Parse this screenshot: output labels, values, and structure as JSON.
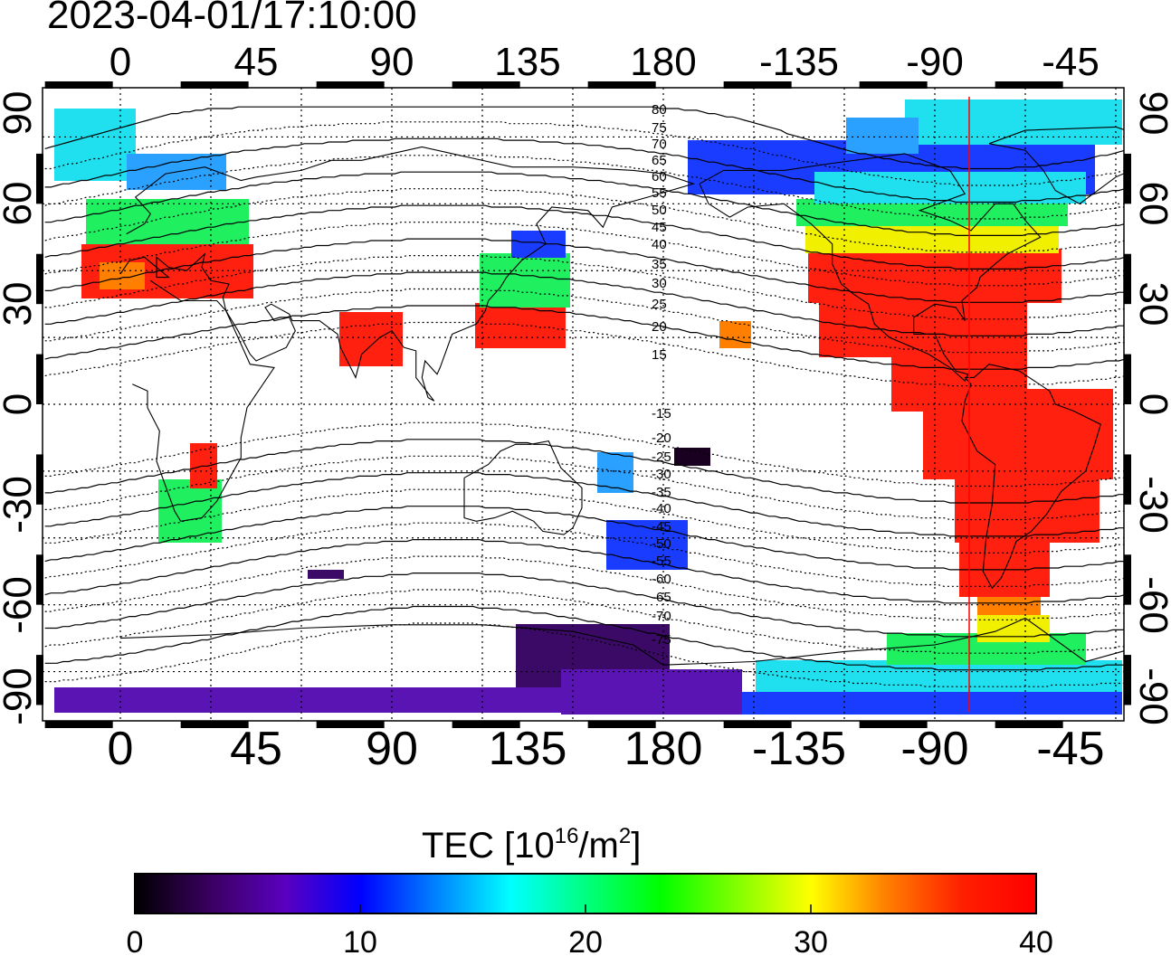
{
  "timestamp": "2023-04-01/17:10:00",
  "map": {
    "lon_labels_top": [
      "0",
      "45",
      "90",
      "135",
      "180",
      "-135",
      "-90",
      "-45"
    ],
    "lon_labels_bottom": [
      "0",
      "45",
      "90",
      "135",
      "180",
      "-135",
      "-90",
      "-45"
    ],
    "lat_labels": [
      "90",
      "60",
      "30",
      "0",
      "-30",
      "-60",
      "-90"
    ],
    "contour_labels": [
      "80",
      "75",
      "70",
      "65",
      "60",
      "55",
      "50",
      "45",
      "40",
      "35",
      "30",
      "25",
      "20",
      "15",
      "-15",
      "-20",
      "-25",
      "-30",
      "-35",
      "-40",
      "-45",
      "-50",
      "-55",
      "-60",
      "-65",
      "-70",
      "-75"
    ],
    "red_line_color": "#ff0000"
  },
  "colorbar": {
    "label": "TEC  [10",
    "label_exp": "16",
    "label_unit": "/m",
    "label_exp2": "2",
    "label_close": "]",
    "ticks": [
      "0",
      "10",
      "20",
      "30",
      "40"
    ],
    "range": [
      0,
      40
    ],
    "colors": [
      "#000000",
      "#3a0060",
      "#5a00c0",
      "#0000ff",
      "#0080ff",
      "#00ffff",
      "#00ff80",
      "#00ff00",
      "#80ff00",
      "#ffff00",
      "#ff8000",
      "#ff2000",
      "#ff0000"
    ]
  }
}
